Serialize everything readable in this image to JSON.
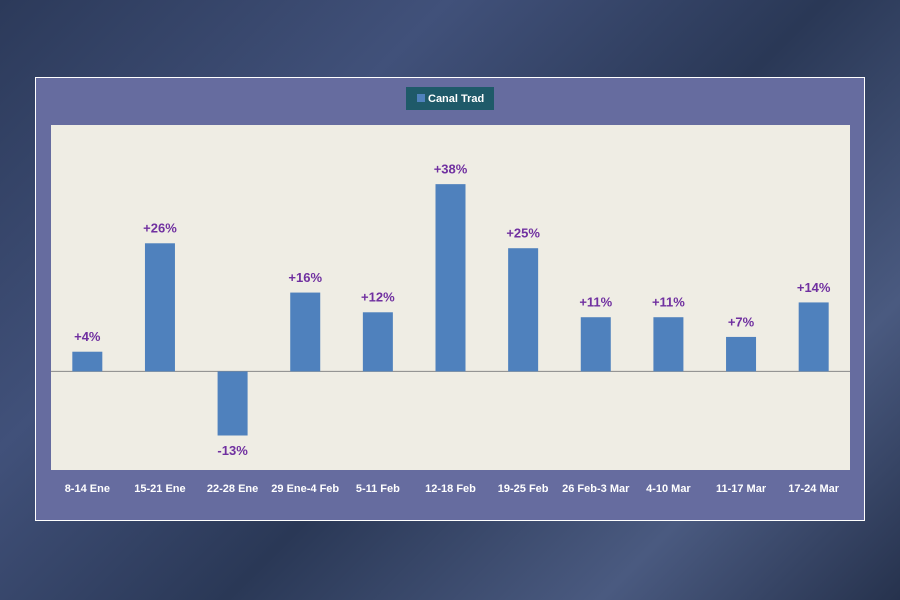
{
  "chart_data": {
    "type": "bar",
    "categories": [
      "8-14 Ene",
      "15-21 Ene",
      "22-28 Ene",
      "29 Ene-4 Feb",
      "5-11 Feb",
      "12-18 Feb",
      "19-25 Feb",
      "26 Feb-3 Mar",
      "4-10 Mar",
      "11-17 Mar",
      "17-24 Mar"
    ],
    "series": [
      {
        "name": "Canal Trad",
        "color": "#4f81bd",
        "values": [
          4,
          26,
          -13,
          16,
          12,
          38,
          25,
          11,
          11,
          7,
          14
        ],
        "value_labels": [
          "+4%",
          "+26%",
          "-13%",
          "+16%",
          "+12%",
          "+38%",
          "+25%",
          "+11%",
          "+11%",
          "+7%",
          "+14%"
        ]
      }
    ],
    "ylim": [
      -20,
      50
    ],
    "legend": "top"
  }
}
